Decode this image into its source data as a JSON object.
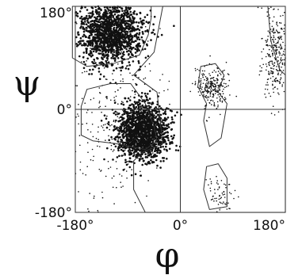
{
  "chart_data": {
    "type": "scatter",
    "title": "",
    "xlabel": "φ",
    "ylabel": "ψ",
    "xlim": [
      -180,
      180
    ],
    "ylim": [
      -180,
      180
    ],
    "x_ticks": [
      {
        "value": -180,
        "label": "-180°"
      },
      {
        "value": 0,
        "label": "0°"
      },
      {
        "value": 180,
        "label": "180°"
      }
    ],
    "y_ticks": [
      {
        "value": 180,
        "label": "180°"
      },
      {
        "value": 0,
        "label": "0°"
      },
      {
        "value": -180,
        "label": "-180°"
      }
    ],
    "reference_lines": {
      "x": 0,
      "y": 0
    },
    "point_color": "#111111",
    "contour_color": "#333333",
    "regions": [
      {
        "center": [
          -120,
          135
        ],
        "spread": [
          28,
          28
        ],
        "density": "high",
        "contour": [
          [
            -185,
            180
          ],
          [
            -185,
            90
          ],
          [
            -160,
            75
          ],
          [
            -115,
            80
          ],
          [
            -70,
            95
          ],
          [
            -55,
            130
          ],
          [
            -50,
            160
          ],
          [
            -50,
            180
          ]
        ]
      },
      {
        "center": [
          -65,
          -40
        ],
        "spread": [
          22,
          25
        ],
        "density": "high",
        "contour": [
          [
            -170,
            5
          ],
          [
            -170,
            -45
          ],
          [
            -150,
            -55
          ],
          [
            -110,
            -60
          ],
          [
            -60,
            -70
          ],
          [
            -40,
            -55
          ],
          [
            -45,
            -30
          ],
          [
            -60,
            10
          ],
          [
            -85,
            45
          ],
          [
            -120,
            45
          ],
          [
            -160,
            35
          ]
        ]
      },
      {
        "center": [
          55,
          40
        ],
        "spread": [
          12,
          18
        ],
        "density": "medium",
        "contour": [
          [
            35,
            75
          ],
          [
            60,
            80
          ],
          [
            75,
            60
          ],
          [
            65,
            30
          ],
          [
            80,
            10
          ],
          [
            70,
            -50
          ],
          [
            50,
            -65
          ],
          [
            40,
            -20
          ],
          [
            45,
            10
          ],
          [
            30,
            40
          ]
        ]
      },
      {
        "center": [
          65,
          -150
        ],
        "spread": [
          12,
          20
        ],
        "density": "low",
        "contour": [
          [
            45,
            -100
          ],
          [
            65,
            -95
          ],
          [
            80,
            -120
          ],
          [
            80,
            -170
          ],
          [
            50,
            -175
          ],
          [
            40,
            -140
          ]
        ]
      },
      {
        "center": [
          -120,
          0
        ],
        "spread": [
          45,
          95
        ],
        "density": "sparse",
        "contour": [
          [
            -180,
            180
          ],
          [
            -180,
            -180
          ],
          [
            -60,
            -180
          ],
          [
            -80,
            -140
          ],
          [
            -80,
            -90
          ],
          [
            -65,
            -75
          ],
          [
            -30,
            -60
          ],
          [
            -40,
            30
          ],
          [
            -80,
            60
          ],
          [
            -45,
            100
          ],
          [
            -30,
            180
          ]
        ]
      },
      {
        "center": [
          165,
          100
        ],
        "spread": [
          12,
          40
        ],
        "density": "sparse",
        "contour": [
          [
            150,
            180
          ],
          [
            155,
            120
          ],
          [
            170,
            70
          ],
          [
            180,
            60
          ],
          [
            180,
            180
          ]
        ]
      }
    ]
  }
}
